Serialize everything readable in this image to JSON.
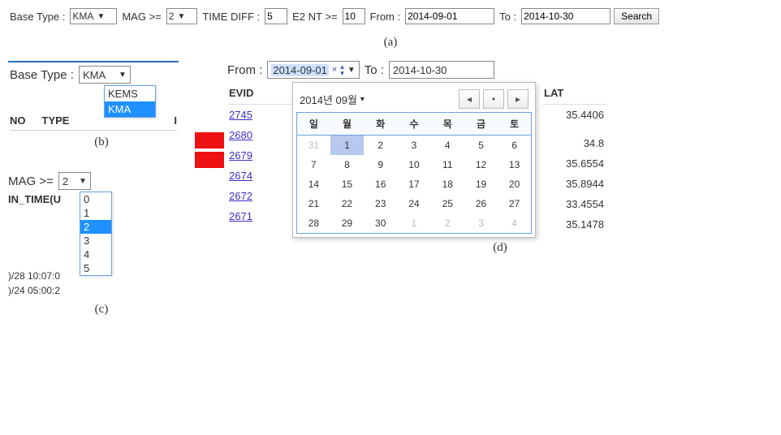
{
  "filterbar": {
    "base_type_label": "Base Type :",
    "base_type_value": "KMA",
    "mag_label": "MAG >=",
    "mag_value": "2",
    "time_diff_label": "TIME DIFF :",
    "time_diff_value": "5",
    "e2nt_label": "E2 NT >=",
    "e2nt_value": "10",
    "from_label": "From :",
    "from_value": "2014-09-01",
    "to_label": "To :",
    "to_value": "2014-10-30",
    "search_label": "Search"
  },
  "caption_a": "(a)",
  "panel_b": {
    "label": "Base Type :",
    "button_value": "KMA",
    "options": [
      "KEMS",
      "KMA"
    ],
    "selected_index": 1,
    "col_no": "NO",
    "col_type": "TYPE",
    "col_i": "I"
  },
  "caption_b": "(b)",
  "panel_c": {
    "label": "MAG >=",
    "button_value": "2",
    "options": [
      "0",
      "1",
      "2",
      "3",
      "4",
      "5"
    ],
    "selected_index": 2,
    "under_label": "IN_TIME(U",
    "row1": ")/28 10:07:0",
    "row2": ")/24 05:00:2"
  },
  "caption_c": "(c)",
  "panel_d": {
    "from_label": "From :",
    "from_value": "2014-09-01",
    "to_label": "To :",
    "to_value": "2014-10-30",
    "hdr_evid": "EVID",
    "hdr_lat": "LAT",
    "evids": [
      "2745",
      "2680",
      "2679",
      "2674",
      "2672",
      "2671"
    ],
    "lats": [
      "35.4406",
      "",
      "34.8",
      "35.6554",
      "35.8944",
      "33.4554",
      "35.1478"
    ],
    "cal_title": "2014년 09월",
    "dow": [
      "일",
      "월",
      "화",
      "수",
      "목",
      "금",
      "토"
    ],
    "weeks": [
      [
        {
          "d": "31",
          "o": true
        },
        {
          "d": "1",
          "sel": true
        },
        {
          "d": "2"
        },
        {
          "d": "3"
        },
        {
          "d": "4"
        },
        {
          "d": "5"
        },
        {
          "d": "6"
        }
      ],
      [
        {
          "d": "7"
        },
        {
          "d": "8"
        },
        {
          "d": "9"
        },
        {
          "d": "10"
        },
        {
          "d": "11"
        },
        {
          "d": "12"
        },
        {
          "d": "13"
        }
      ],
      [
        {
          "d": "14"
        },
        {
          "d": "15"
        },
        {
          "d": "16"
        },
        {
          "d": "17"
        },
        {
          "d": "18"
        },
        {
          "d": "19"
        },
        {
          "d": "20"
        }
      ],
      [
        {
          "d": "21"
        },
        {
          "d": "22"
        },
        {
          "d": "23"
        },
        {
          "d": "24"
        },
        {
          "d": "25"
        },
        {
          "d": "26"
        },
        {
          "d": "27"
        }
      ],
      [
        {
          "d": "28"
        },
        {
          "d": "29"
        },
        {
          "d": "30"
        },
        {
          "d": "1",
          "o": true
        },
        {
          "d": "2",
          "o": true
        },
        {
          "d": "3",
          "o": true
        },
        {
          "d": "4",
          "o": true
        }
      ]
    ]
  },
  "caption_d": "(d)",
  "colors": {
    "accent": "#1e90ff",
    "link": "#3a2fc4",
    "calendar_border": "#6aa4e0",
    "red": "#e11"
  }
}
